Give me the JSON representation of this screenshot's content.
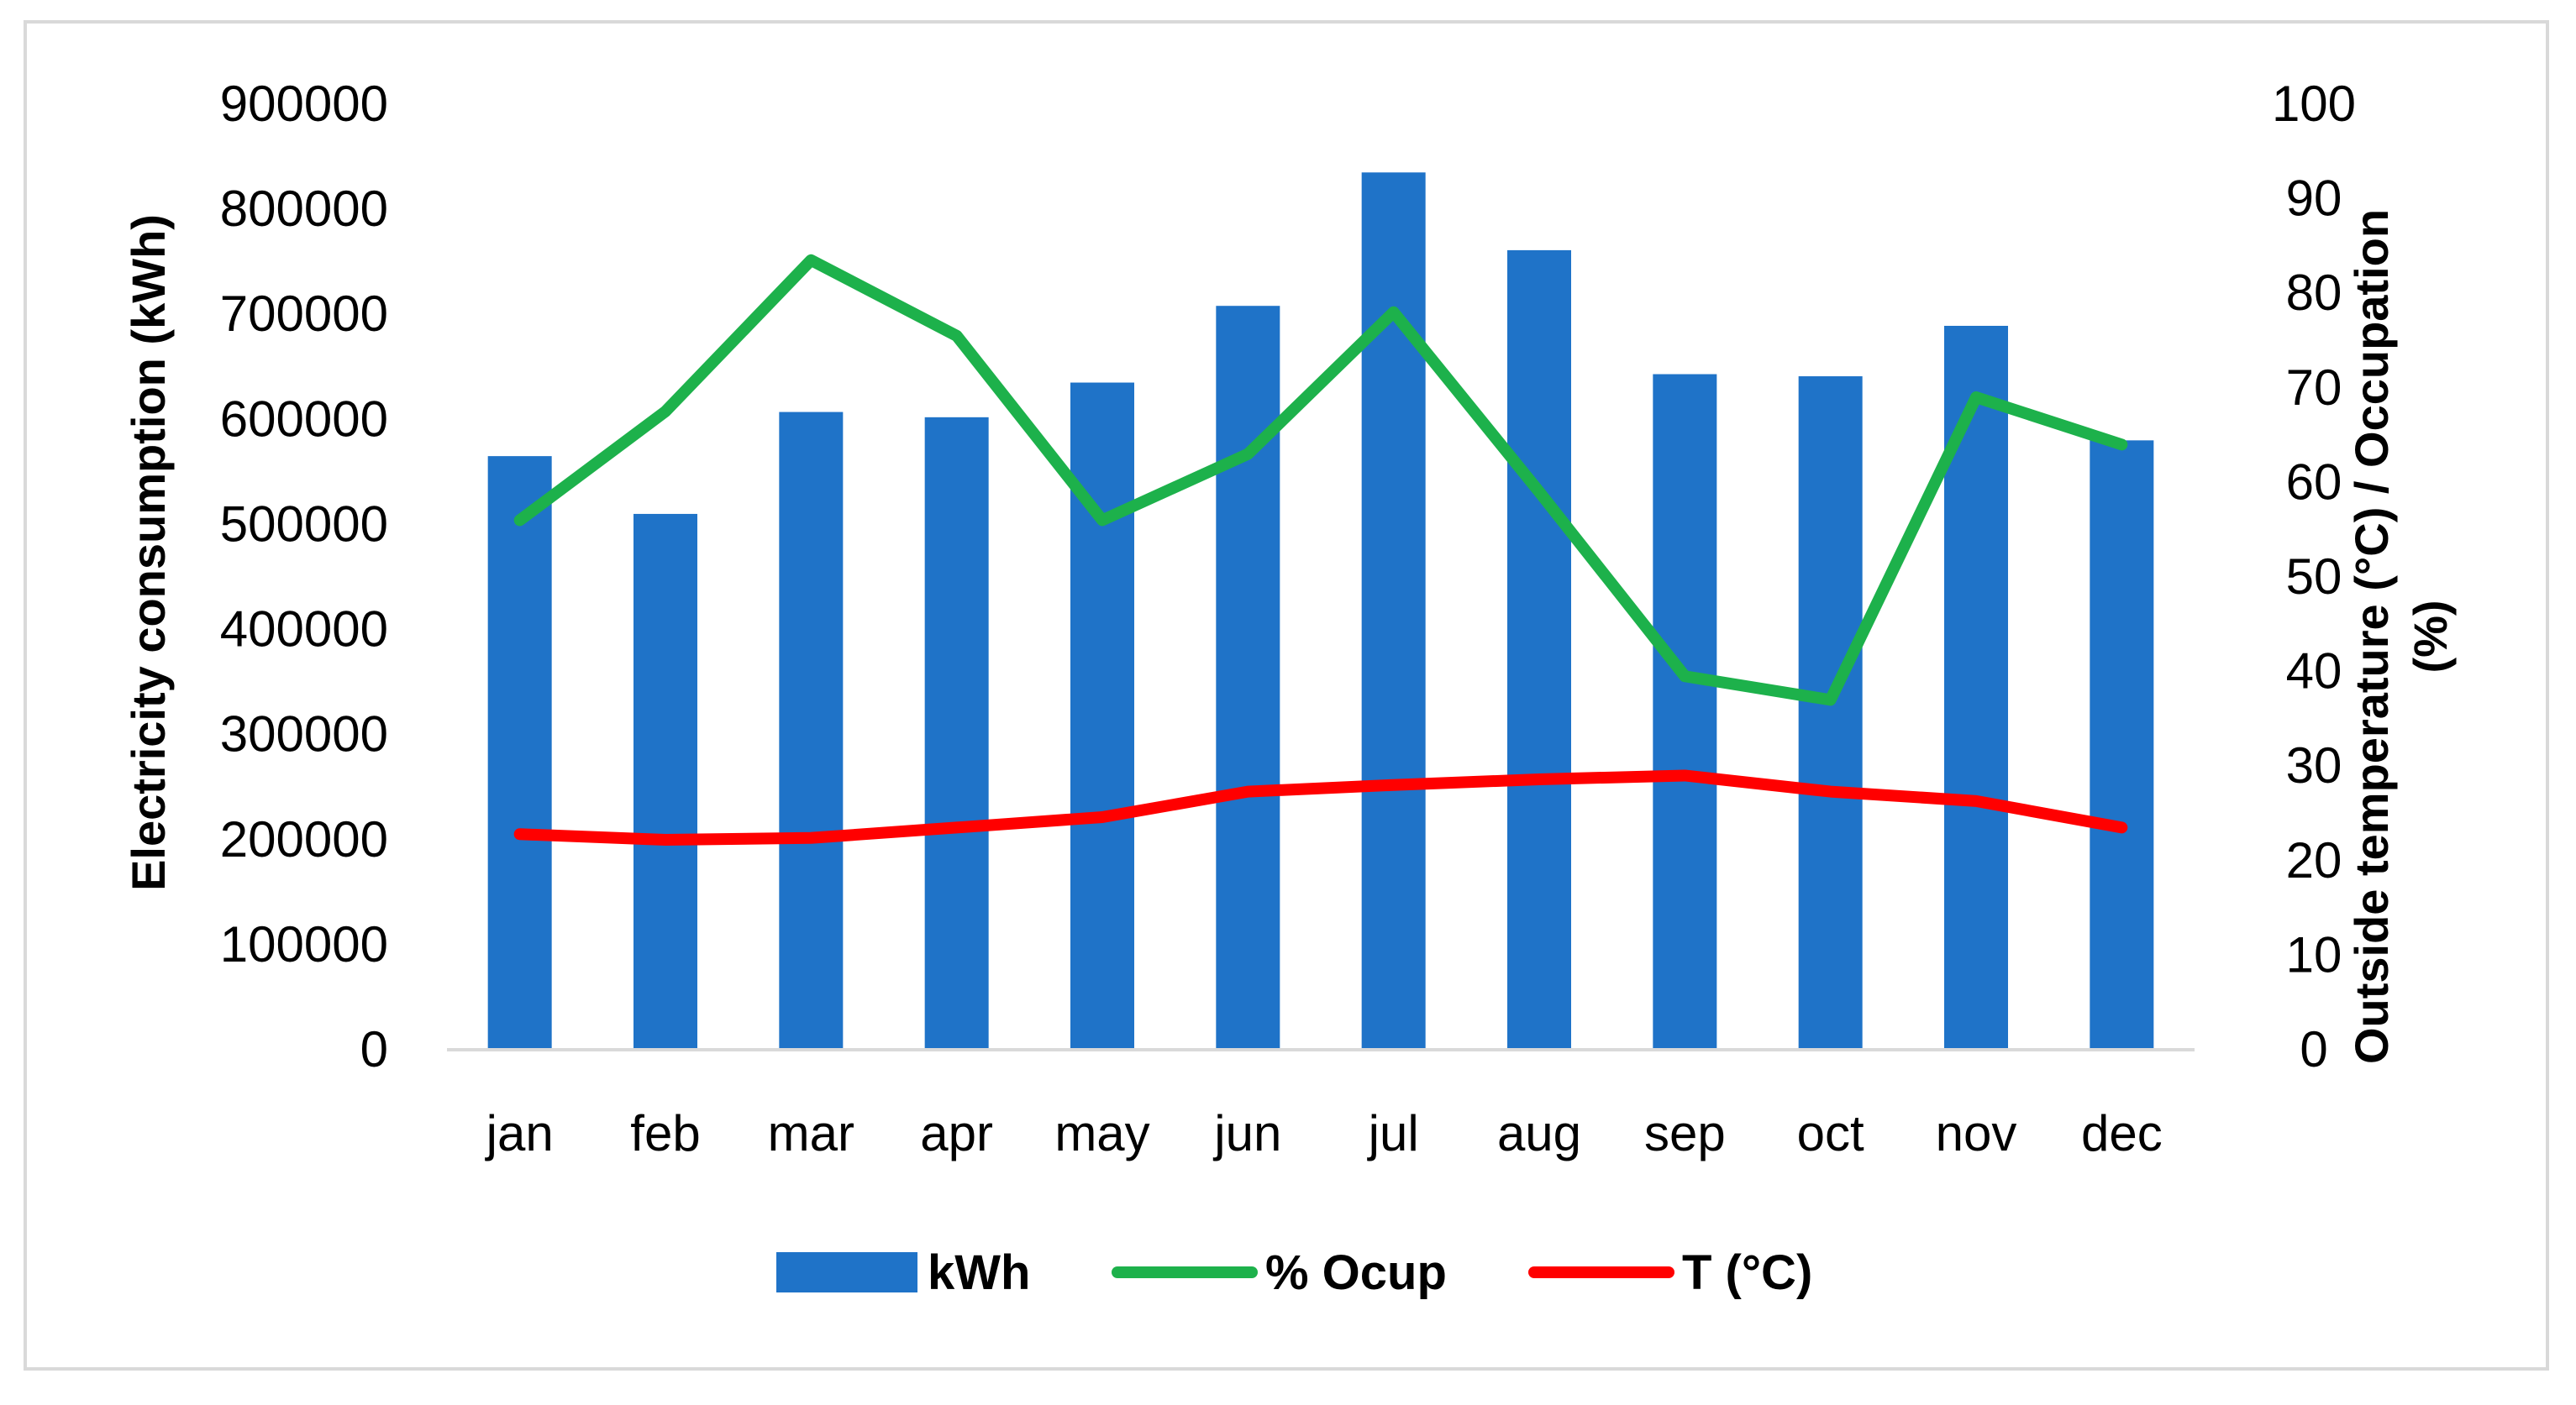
{
  "chart_data": {
    "type": "bar",
    "title": "",
    "categories": [
      "jan",
      "feb",
      "mar",
      "apr",
      "may",
      "jun",
      "jul",
      "aug",
      "sep",
      "oct",
      "nov",
      "dec"
    ],
    "series": [
      {
        "name": "kWh",
        "kind": "bar",
        "axis": "left",
        "color": "#1f73c8",
        "values": [
          565000,
          510000,
          607000,
          602000,
          635000,
          708000,
          835000,
          761000,
          643000,
          641000,
          689000,
          580000
        ]
      },
      {
        "name": "% Ocup",
        "kind": "line",
        "axis": "right",
        "color": "#1db14b",
        "values": [
          56,
          67.5,
          83.5,
          75.5,
          56,
          63,
          78,
          59,
          39.5,
          37,
          69,
          64
        ]
      },
      {
        "name": "T (°C)",
        "kind": "line",
        "axis": "right",
        "color": "#ff0000",
        "values": [
          22.8,
          22.2,
          22.4,
          23.5,
          24.6,
          27.3,
          28,
          28.6,
          29,
          27.3,
          26.3,
          23.5
        ]
      }
    ],
    "y_left": {
      "label": "Electricity consumption (kWh)",
      "min": 0,
      "max": 900000,
      "ticks": [
        "0",
        "100000",
        "200000",
        "300000",
        "400000",
        "500000",
        "600000",
        "700000",
        "800000",
        "900000"
      ]
    },
    "y_right": {
      "label_line1": "Outside temperature (°C) / Occupation",
      "label_line2": "(%)",
      "min": 0,
      "max": 100,
      "ticks": [
        "0",
        "10",
        "20",
        "30",
        "40",
        "50",
        "60",
        "70",
        "80",
        "90",
        "100"
      ]
    },
    "legend": {
      "position": "bottom",
      "entries": [
        "kWh",
        "% Ocup",
        "T (°C)"
      ]
    },
    "grid": false
  }
}
